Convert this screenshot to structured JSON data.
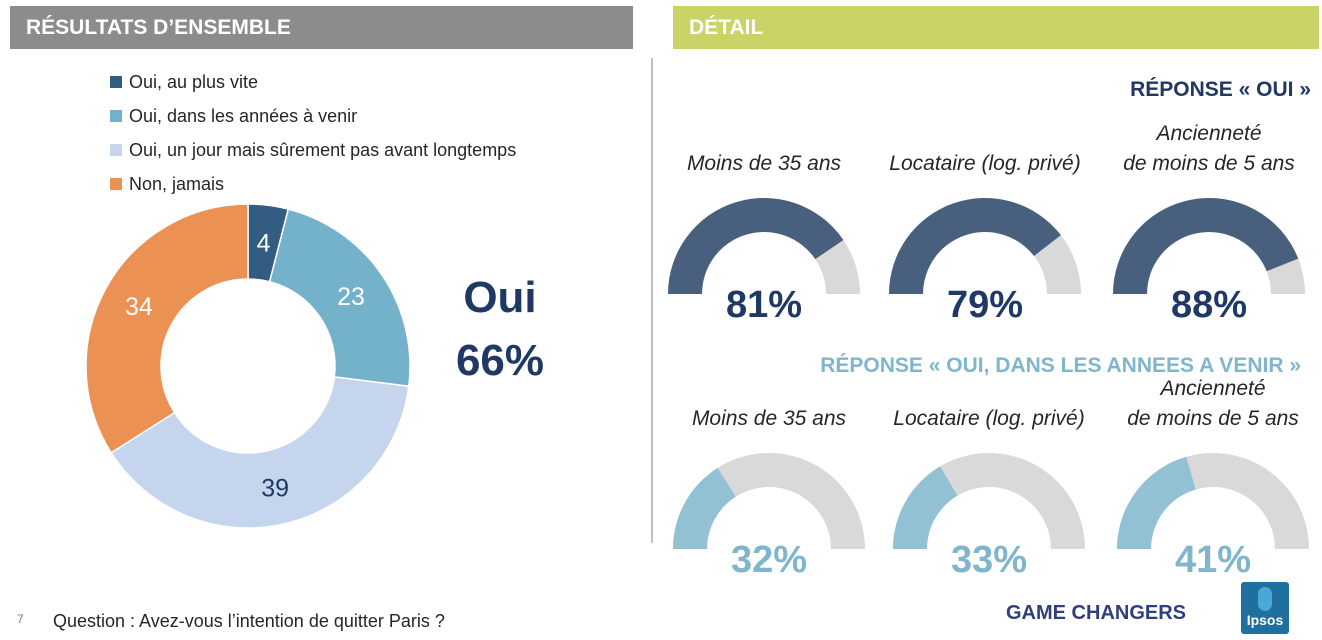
{
  "headers": {
    "left": "RÉSULTATS D’ENSEMBLE",
    "right": "DÉTAIL"
  },
  "overall": {
    "legend": [
      {
        "label": "Oui, au plus vite",
        "color": "#335c81"
      },
      {
        "label": "Oui, dans les années à venir",
        "color": "#74b2cb"
      },
      {
        "label": "Oui, un jour mais sûrement pas avant longtemps",
        "color": "#c5d5ee"
      },
      {
        "label": "Non, jamais",
        "color": "#ec9154"
      }
    ],
    "oui_label": "Oui",
    "oui_value": "66%"
  },
  "chart_data": [
    {
      "type": "pie",
      "categories": [
        "Oui, au plus vite",
        "Oui, dans les années à venir",
        "Oui, un jour mais sûrement pas avant longtemps",
        "Non, jamais"
      ],
      "values": [
        4,
        23,
        39,
        34
      ],
      "value_labels": [
        "4",
        "23",
        "39",
        "34"
      ],
      "colors": [
        "#335c81",
        "#74b2cb",
        "#c5d5ee",
        "#ec9154"
      ],
      "donut": true
    },
    {
      "type": "gauge",
      "title": "RÉPONSE « OUI »",
      "fill_color": "#48607e",
      "track_color": "#d9d9d9",
      "items": [
        {
          "label_lines": [
            "Moins de 35 ans"
          ],
          "value": 81,
          "value_label": "81%"
        },
        {
          "label_lines": [
            "Locataire (log. privé)"
          ],
          "value": 79,
          "value_label": "79%"
        },
        {
          "label_lines": [
            "Ancienneté",
            "de moins de 5 ans"
          ],
          "value": 88,
          "value_label": "88%"
        }
      ]
    },
    {
      "type": "gauge",
      "title": "RÉPONSE « OUI, DANS LES ANNEES A VENIR »",
      "fill_color": "#92c1d3",
      "track_color": "#d9d9d9",
      "items": [
        {
          "label_lines": [
            "Moins de 35 ans"
          ],
          "value": 32,
          "value_label": "32%"
        },
        {
          "label_lines": [
            "Locataire (log. privé)"
          ],
          "value": 33,
          "value_label": "33%"
        },
        {
          "label_lines": [
            "Ancienneté",
            "de moins de 5 ans"
          ],
          "value": 41,
          "value_label": "41%"
        }
      ]
    }
  ],
  "footer": {
    "page_number": "7",
    "question": "Question : Avez-vous l’intention de quitter Paris ?",
    "brand": "GAME CHANGERS",
    "logo_text": "Ipsos"
  }
}
